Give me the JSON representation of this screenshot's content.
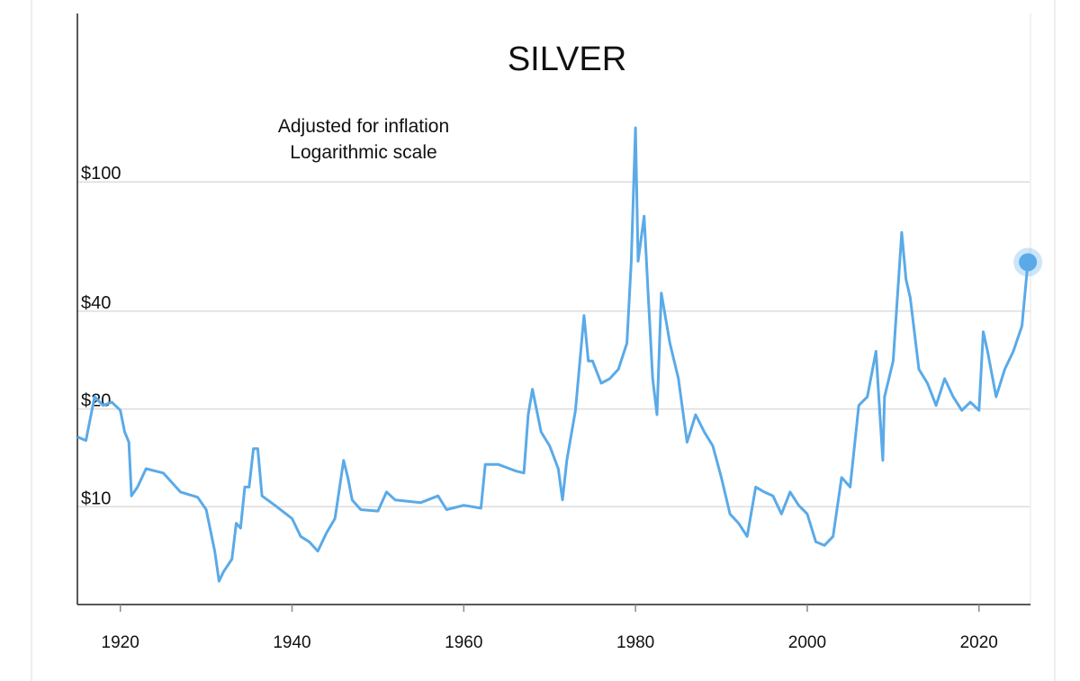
{
  "chart_data": {
    "type": "line",
    "title": "SILVER",
    "annotation": [
      "Adjusted for inflation",
      "Logarithmic scale"
    ],
    "color": "#5aaae8",
    "ylog": true,
    "grid": true,
    "xlim": [
      1915,
      2026
    ],
    "xticks": [
      1920,
      1940,
      1960,
      1980,
      2000,
      2020
    ],
    "ylim": [
      5,
      330
    ],
    "yticks": [
      {
        "value": 10,
        "label": "$10"
      },
      {
        "value": 20,
        "label": "$20"
      },
      {
        "value": 40,
        "label": "$40"
      },
      {
        "value": 100,
        "label": "$100"
      }
    ],
    "x": [
      1915,
      1916,
      1917,
      1918,
      1919,
      1920,
      1920.5,
      1921,
      1921.3,
      1922,
      1923,
      1925,
      1927,
      1929,
      1930,
      1931,
      1931.5,
      1932,
      1933,
      1933.5,
      1934,
      1934.5,
      1935,
      1935.5,
      1936,
      1936.5,
      1938,
      1940,
      1941,
      1942,
      1943,
      1944,
      1945,
      1946,
      1946.5,
      1947,
      1948,
      1950,
      1951,
      1952,
      1955,
      1957,
      1958,
      1960,
      1962,
      1962.5,
      1964,
      1966,
      1967,
      1967.5,
      1968,
      1969,
      1970,
      1971,
      1971.5,
      1972,
      1973,
      1974,
      1974.5,
      1975,
      1976,
      1977,
      1978,
      1979,
      1979.5,
      1980,
      1980.3,
      1981,
      1981.5,
      1982,
      1982.5,
      1983,
      1984,
      1985,
      1986,
      1987,
      1988,
      1989,
      1990,
      1991,
      1992,
      1993,
      1994,
      1995,
      1996,
      1997,
      1998,
      1999,
      2000,
      2001,
      2002,
      2003,
      2004,
      2005,
      2006,
      2007,
      2008,
      2008.8,
      2009,
      2010,
      2011,
      2011.5,
      2012,
      2013,
      2014,
      2015,
      2016,
      2017,
      2018,
      2019,
      2020,
      2020.5,
      2021,
      2022,
      2023,
      2024,
      2025,
      2025.7
    ],
    "values": [
      16.4,
      16,
      21.8,
      20.5,
      21,
      19.8,
      17,
      15.8,
      10.8,
      11.5,
      13.1,
      12.7,
      11.1,
      10.7,
      9.8,
      7.3,
      5.9,
      6.3,
      6.9,
      8.9,
      8.6,
      11.5,
      11.5,
      15.1,
      15.1,
      10.8,
      10.1,
      9.2,
      8.1,
      7.8,
      7.3,
      8.3,
      9.2,
      13.9,
      12.3,
      10.5,
      9.8,
      9.7,
      11.1,
      10.5,
      10.3,
      10.8,
      9.8,
      10.1,
      9.9,
      13.5,
      13.5,
      12.9,
      12.7,
      19.2,
      23,
      17,
      15.4,
      13.1,
      10.5,
      13.9,
      19.8,
      38.8,
      28.1,
      28.1,
      24,
      24.8,
      26.5,
      31.9,
      57,
      146.7,
      57,
      78.5,
      44,
      24.8,
      19.2,
      45.5,
      31.9,
      24.8,
      15.8,
      19.2,
      17,
      15.4,
      12.3,
      9.5,
      8.9,
      8.1,
      11.5,
      11.1,
      10.8,
      9.5,
      11.1,
      10.1,
      9.5,
      7.8,
      7.6,
      8.1,
      12.3,
      11.5,
      20.5,
      21.8,
      30.1,
      13.9,
      21.8,
      28.1,
      69.9,
      50.1,
      44,
      26.5,
      24,
      20.5,
      24.8,
      21.8,
      19.8,
      21,
      19.8,
      34.6,
      30.1,
      21.8,
      26.5,
      30.1,
      36,
      56.6
    ]
  }
}
